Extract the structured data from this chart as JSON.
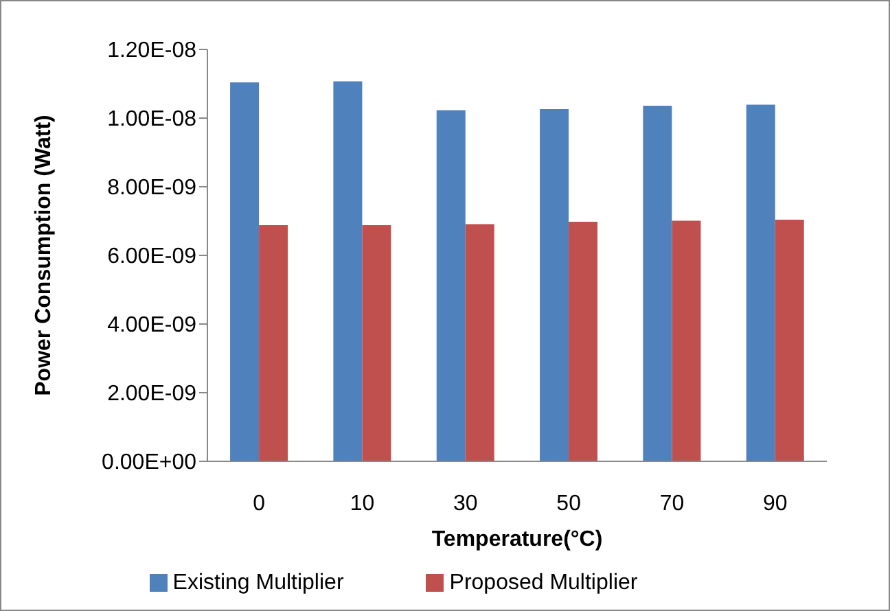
{
  "chart_data": {
    "type": "bar",
    "xlabel": "Temperature(°C)",
    "ylabel": "Power Consumption (Watt)",
    "categories": [
      "0",
      "10",
      "30",
      "50",
      "70",
      "90"
    ],
    "series": [
      {
        "name": "Existing Multiplier",
        "color": "#4f81bd",
        "values": [
          1.104e-08,
          1.107e-08,
          1.023e-08,
          1.026e-08,
          1.036e-08,
          1.039e-08
        ]
      },
      {
        "name": "Proposed Multiplier",
        "color": "#c0504d",
        "values": [
          6.88e-09,
          6.88e-09,
          6.91e-09,
          6.98e-09,
          7.01e-09,
          7.04e-09
        ]
      }
    ],
    "ylim": [
      0,
      1.2e-08
    ],
    "yticks": [
      {
        "value": 0,
        "label": "0.00E+00"
      },
      {
        "value": 2e-09,
        "label": "2.00E-09"
      },
      {
        "value": 4e-09,
        "label": "4.00E-09"
      },
      {
        "value": 6e-09,
        "label": "6.00E-09"
      },
      {
        "value": 8e-09,
        "label": "8.00E-09"
      },
      {
        "value": 1e-08,
        "label": "1.00E-08"
      },
      {
        "value": 1.2e-08,
        "label": "1.20E-08"
      }
    ],
    "grid": false,
    "legend": "bottom"
  }
}
